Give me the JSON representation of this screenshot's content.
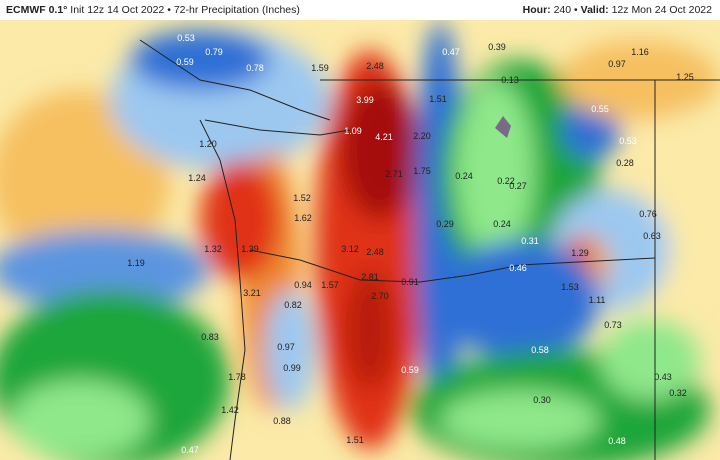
{
  "header": {
    "model": "ECMWF 0.1°",
    "init": "Init 12z 14 Oct 2022",
    "separator": "•",
    "product": "72-hr Precipitation (Inches)",
    "hour_label": "Hour:",
    "hour_value": "240",
    "valid_label": "Valid:",
    "valid_value": "12z Mon 24 Oct 2022"
  },
  "colors": {
    "low_green": "#1fa63a",
    "light_green": "#8fe88a",
    "blue": "#2d6fd6",
    "light_blue": "#9cc8f0",
    "cream": "#fbf0b0",
    "orange": "#f5a33a",
    "red": "#e03216",
    "dark_red": "#a50f0f",
    "purple": "#7a6a8a"
  },
  "map": {
    "labels": [
      "0.53",
      "0.79",
      "0.59",
      "0.78",
      "1.59",
      "2.48",
      "0.47",
      "0.39",
      "1.16",
      "0.97",
      "1.25",
      "0.13",
      "3.99",
      "1.51",
      "4.21",
      "2.20",
      "1.09",
      "1.20",
      "1.24",
      "2.71",
      "1.75",
      "0.24",
      "0.22",
      "0.27",
      "0.55",
      "0.53",
      "0.28",
      "1.62",
      "1.52",
      "0.29",
      "0.24",
      "0.76",
      "0.63",
      "1.32",
      "1.19",
      "1.39",
      "3.12",
      "2.48",
      "0.31",
      "1.29",
      "0.46",
      "0.94",
      "1.57",
      "2.81",
      "0.91",
      "1.53",
      "1.11",
      "3.21",
      "0.82",
      "2.70",
      "0.73",
      "0.83",
      "0.97",
      "0.99",
      "0.58",
      "0.59",
      "1.78",
      "0.43",
      "0.32",
      "0.30",
      "0.88",
      "0.47",
      "1.51",
      "0.48",
      "1.42"
    ]
  }
}
